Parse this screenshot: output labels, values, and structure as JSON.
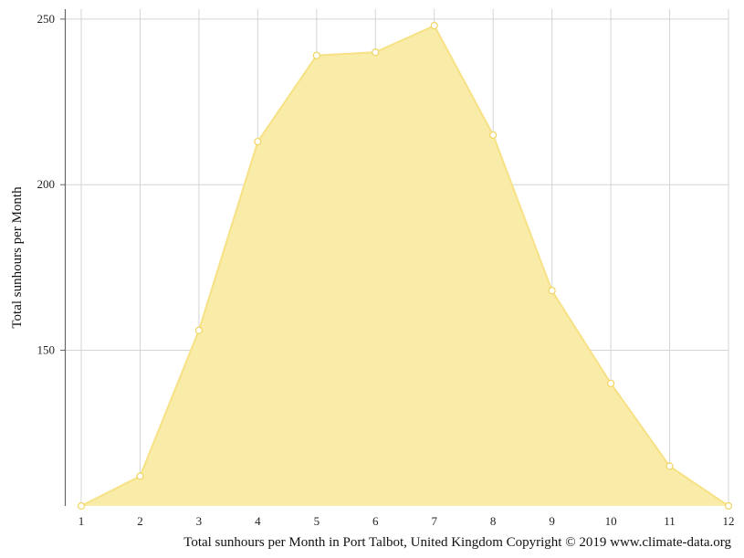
{
  "chart_data": {
    "type": "area",
    "x": [
      1,
      2,
      3,
      4,
      5,
      6,
      7,
      8,
      9,
      10,
      11,
      12
    ],
    "series": [
      {
        "values": [
          103,
          112,
          156,
          213,
          239,
          240,
          248,
          215,
          168,
          140,
          115,
          103
        ]
      }
    ],
    "xlabel": "",
    "ylabel": "Total sunhours per Month",
    "xlim": [
      1,
      12
    ],
    "ylim": [
      103,
      253
    ],
    "yticks": [
      150,
      200,
      250
    ],
    "grid": true,
    "colors": {
      "fill": "#f9eca9",
      "line": "#f7e184",
      "marker_fill": "#ffffff",
      "marker_stroke": "#f0d562",
      "grid": "#d4d4d4",
      "axis": "#666666"
    }
  },
  "caption": "Total sunhours per Month in Port Talbot, United Kingdom Copyright © 2019 www.climate-data.org"
}
